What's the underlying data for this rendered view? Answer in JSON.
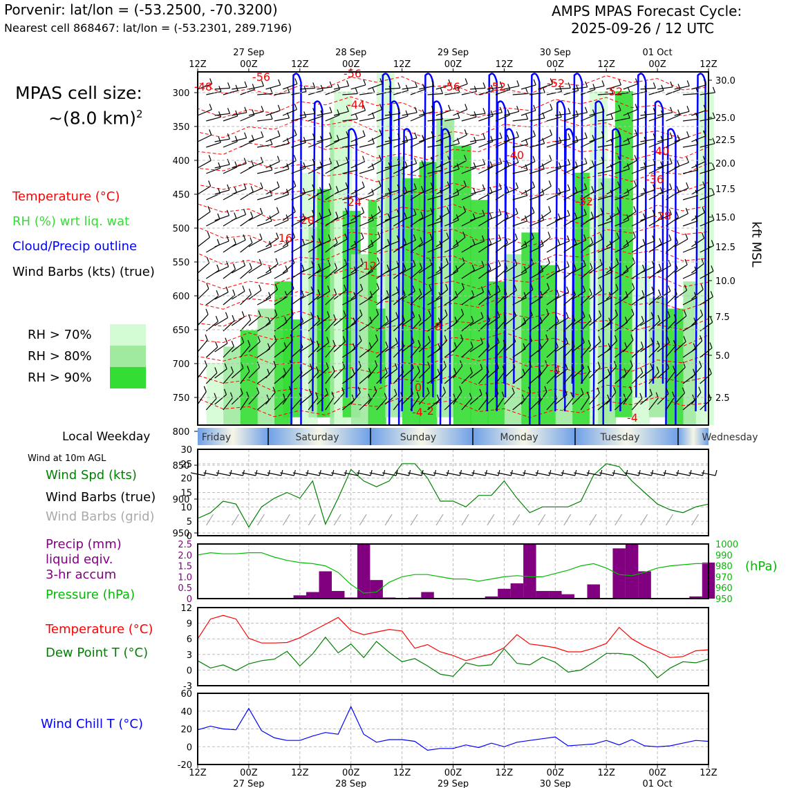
{
  "header": {
    "location_title": "Porvenir: lat/lon = (-53.2500, -70.3200)",
    "nearest_cell": "Nearest cell 868467: lat/lon = (-53.2301, 289.7196)",
    "model_title": "AMPS MPAS Forecast Cycle:",
    "cycle": "2025-09-26 / 12 UTC"
  },
  "cell_size": {
    "line1": "MPAS cell size:",
    "line2": "~(8.0 km)",
    "sup": "2"
  },
  "legend": {
    "temperature": "Temperature (°C)",
    "rh": "RH (%) wrt liq. wat",
    "cloud": "Cloud/Precip outline",
    "wind": "Wind Barbs (kts) (true)",
    "rh_bins": [
      {
        "label": "RH > 70%",
        "color": "#d4fcd4"
      },
      {
        "label": "RH > 80%",
        "color": "#a0eaa0"
      },
      {
        "label": "RH > 90%",
        "color": "#33dd33"
      }
    ]
  },
  "colors": {
    "temp": "#ff0000",
    "green": "#008000",
    "bright_green": "#33dd33",
    "blue": "#0000ff",
    "purple": "#800080",
    "gray": "#a9a9a9"
  },
  "time_axis": {
    "labels": [
      "12Z",
      "00Z",
      "12Z",
      "00Z",
      "12Z",
      "00Z",
      "12Z",
      "00Z",
      "12Z",
      "00Z",
      "12Z"
    ],
    "dates": [
      "27 Sep",
      "28 Sep",
      "29 Sep",
      "30 Sep",
      "01 Oct"
    ]
  },
  "weekday": {
    "title": "Local Weekday",
    "days": [
      "Friday",
      "Saturday",
      "Sunday",
      "Monday",
      "Tuesday",
      "Wednesday"
    ]
  },
  "chart_data": [
    {
      "type": "contour",
      "name": "cross-section",
      "ylabel_right": "kft MSL",
      "pressure_ticks": [
        300,
        350,
        400,
        450,
        500,
        550,
        600,
        650,
        700,
        750,
        800,
        850,
        900,
        950
      ],
      "kft_ticks": [
        "30.0",
        "25.0",
        "22.5",
        "20.0",
        "17.5",
        "15.0",
        "12.5",
        "10.0",
        "7.5",
        "5.0",
        "2.5"
      ],
      "temp_labels": [
        "-56",
        "-56",
        "-56",
        "-52",
        "-52",
        "-52",
        "-48",
        "-44",
        "-40",
        "-40",
        "-36",
        "-32",
        "-28",
        "-24",
        "-20",
        "-16",
        "-12",
        "-8",
        "-4",
        "0",
        "-4",
        "-4",
        "-2"
      ]
    },
    {
      "type": "line",
      "name": "wind",
      "panel_note": "Wind at 10m AGL",
      "legend": [
        "Wind Spd (kts)",
        "Wind Barbs (true)",
        "Wind Barbs (grid)"
      ],
      "ylim": [
        0,
        30
      ],
      "yticks": [
        "30",
        "25",
        "20",
        "15",
        "10",
        "5",
        "0"
      ],
      "x_hours": [
        0,
        3,
        6,
        9,
        12,
        15,
        18,
        21,
        24,
        27,
        30,
        33,
        36,
        39,
        42,
        45,
        48,
        51,
        54,
        57,
        60,
        63,
        66,
        69,
        72,
        75,
        78,
        81,
        84,
        87,
        90,
        93,
        96,
        99,
        102,
        105,
        108,
        111,
        114,
        117,
        120
      ],
      "values": [
        6,
        8,
        12,
        11,
        3,
        10,
        13,
        15,
        13,
        19,
        4,
        13,
        23,
        19,
        17,
        19,
        25,
        25,
        20,
        12,
        12,
        10,
        14,
        14,
        19,
        13,
        8,
        10,
        10,
        10,
        12,
        21,
        25,
        24,
        19,
        15,
        11,
        9,
        8,
        10,
        11
      ]
    },
    {
      "type": "bar",
      "name": "precip_pressure",
      "legend": [
        "Precip (mm)",
        "liquid eqiv.",
        "3-hr accum",
        "Pressure (hPa)"
      ],
      "unit_label": "(hPa)",
      "ylim_precip": [
        0,
        2.5
      ],
      "precip_ticks": [
        "2.5",
        "2.0",
        "1.5",
        "1.0",
        "0.5",
        "0"
      ],
      "ylim_pressure": [
        950,
        1000
      ],
      "pressure_ticks": [
        "1000",
        "990",
        "980",
        "970",
        "960",
        "950"
      ],
      "x_hours": [
        0,
        3,
        6,
        9,
        12,
        15,
        18,
        21,
        24,
        27,
        30,
        33,
        36,
        39,
        42,
        45,
        48,
        51,
        54,
        57,
        60,
        63,
        66,
        69,
        72,
        75,
        78,
        81,
        84,
        87,
        90,
        93,
        96,
        99,
        102,
        105,
        108,
        111,
        114,
        117,
        120
      ],
      "precip": [
        0,
        0,
        0,
        0,
        0,
        0,
        0,
        0.02,
        0.15,
        0.3,
        1.25,
        0.35,
        0.05,
        2.5,
        0.85,
        0.05,
        0,
        0.05,
        0.3,
        0,
        0,
        0,
        0,
        0.1,
        0.45,
        0.7,
        2.5,
        0.35,
        0.35,
        0.2,
        0,
        0.65,
        0,
        2.3,
        2.5,
        1.25,
        0,
        0,
        0,
        0.1,
        1.65
      ],
      "pressure": [
        990,
        992,
        991,
        991,
        992,
        992,
        988,
        985,
        983,
        982,
        980,
        974,
        963,
        955,
        956,
        965,
        970,
        972,
        972,
        970,
        968,
        968,
        966,
        968,
        970,
        971,
        970,
        970,
        973,
        976,
        980,
        982,
        978,
        972,
        971,
        974,
        978,
        980,
        981,
        982,
        982
      ]
    },
    {
      "type": "line",
      "name": "temp_dewpoint",
      "legend": [
        "Temperature (°C)",
        "Dew Point T (°C)"
      ],
      "ylim": [
        -3,
        12
      ],
      "yticks": [
        "12",
        "9",
        "6",
        "3",
        "0",
        "-3"
      ],
      "x_hours": [
        0,
        3,
        6,
        9,
        12,
        15,
        18,
        21,
        24,
        27,
        30,
        33,
        36,
        39,
        42,
        45,
        48,
        51,
        54,
        57,
        60,
        63,
        66,
        69,
        72,
        75,
        78,
        81,
        84,
        87,
        90,
        93,
        96,
        99,
        102,
        105,
        108,
        111,
        114,
        117,
        120
      ],
      "temperature": [
        6,
        9.8,
        10.5,
        9.8,
        6.1,
        5.2,
        5.2,
        5.3,
        6.2,
        7.5,
        8.8,
        10.1,
        7.6,
        6.8,
        7.3,
        7.8,
        7.5,
        4.2,
        4.9,
        3.5,
        2.8,
        1.8,
        2.5,
        3.1,
        4.3,
        6.8,
        5,
        4.7,
        4.3,
        3.5,
        3.5,
        4.2,
        5.1,
        8.2,
        6,
        4.6,
        3.6,
        2.4,
        2.6,
        3.7,
        3.9
      ],
      "dewpoint": [
        1.8,
        0.4,
        1,
        -0.1,
        1.2,
        1.8,
        2.1,
        3.6,
        0.8,
        3.1,
        6.3,
        3.3,
        5,
        2.4,
        5.5,
        3.4,
        1.6,
        2.2,
        0.8,
        -0.8,
        -1.2,
        1.4,
        0.8,
        1,
        4.1,
        1.3,
        1,
        2.5,
        1.5,
        -0.4,
        0,
        1.5,
        3.2,
        3.2,
        2.9,
        1.3,
        -1.5,
        0.4,
        1.6,
        1.4,
        2.1
      ]
    },
    {
      "type": "line",
      "name": "wind_chill",
      "legend": [
        "Wind Chill T (°C)"
      ],
      "ylim": [
        -20,
        60
      ],
      "yticks": [
        "60",
        "40",
        "20",
        "0",
        "-20"
      ],
      "x_hours": [
        0,
        3,
        6,
        9,
        12,
        15,
        18,
        21,
        24,
        27,
        30,
        33,
        36,
        39,
        42,
        45,
        48,
        51,
        54,
        57,
        60,
        63,
        66,
        69,
        72,
        75,
        78,
        81,
        84,
        87,
        90,
        93,
        96,
        99,
        102,
        105,
        108,
        111,
        114,
        117,
        120
      ],
      "values": [
        19,
        23,
        20,
        19,
        43,
        18,
        10,
        7,
        7,
        12,
        16,
        14,
        45,
        14,
        5,
        8,
        8,
        6,
        -4,
        -2,
        -2,
        2,
        -1,
        4,
        0,
        5,
        7,
        9,
        11,
        1,
        2,
        3,
        7,
        2,
        8,
        1,
        0,
        1,
        4,
        7,
        6
      ]
    }
  ]
}
